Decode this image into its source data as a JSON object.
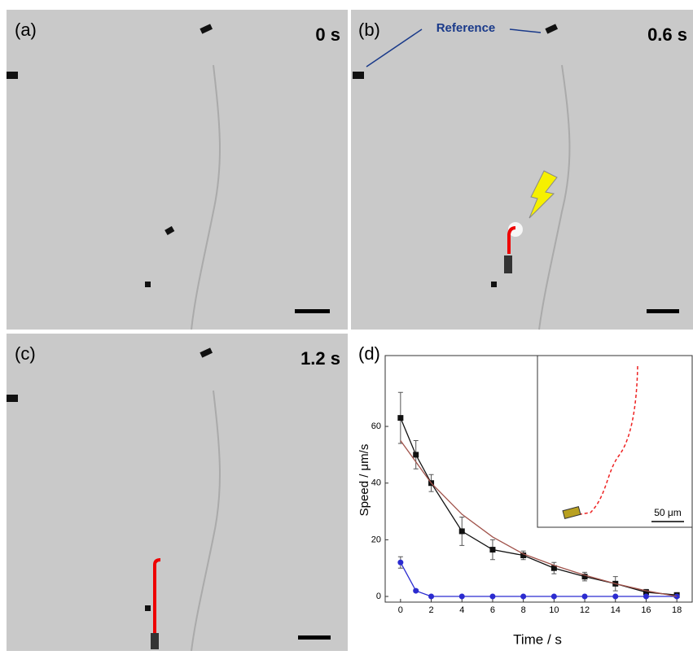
{
  "panels": [
    {
      "label": "(a)",
      "time": "0 s"
    },
    {
      "label": "(b)",
      "time": "0.6 s"
    },
    {
      "label": "(c)",
      "time": "1.2 s"
    },
    {
      "label": "(d)"
    }
  ],
  "annotation": "Reference",
  "chart_data": {
    "type": "line",
    "x_label": "Time / s",
    "y_label": "Speed / μm/s",
    "inset_scale_label": "50 μm",
    "x": [
      0,
      1,
      2,
      4,
      6,
      8,
      10,
      12,
      14,
      16,
      18
    ],
    "series": [
      {
        "color": "#111111",
        "marker": "square",
        "values": [
          63,
          50,
          40,
          23,
          16.5,
          14.5,
          10,
          7,
          4.5,
          1.5,
          0.5
        ],
        "errors": [
          9,
          5,
          3,
          5,
          3.5,
          1.5,
          2,
          1.5,
          2.5,
          1,
          0.5
        ]
      },
      {
        "color": "#2b2bd0",
        "marker": "circle",
        "values": [
          12,
          2,
          0,
          0,
          0,
          0,
          0,
          0,
          0,
          0,
          0
        ],
        "errors": [
          2,
          0.5,
          0,
          0,
          0,
          0,
          0,
          0,
          0,
          0,
          0
        ]
      },
      {
        "color": "#a0524a",
        "marker": "none",
        "x": [
          0,
          2,
          4,
          6,
          8,
          10,
          12,
          14,
          16,
          18
        ],
        "values": [
          55,
          40,
          29,
          21,
          15,
          11,
          7.5,
          4.5,
          2,
          0
        ]
      }
    ],
    "xlim": [
      -1,
      19
    ],
    "ylim": [
      -2,
      85
    ],
    "xticks": [
      0,
      2,
      4,
      6,
      8,
      10,
      12,
      14,
      16,
      18
    ],
    "yticks": [
      0,
      20,
      40,
      60
    ]
  }
}
